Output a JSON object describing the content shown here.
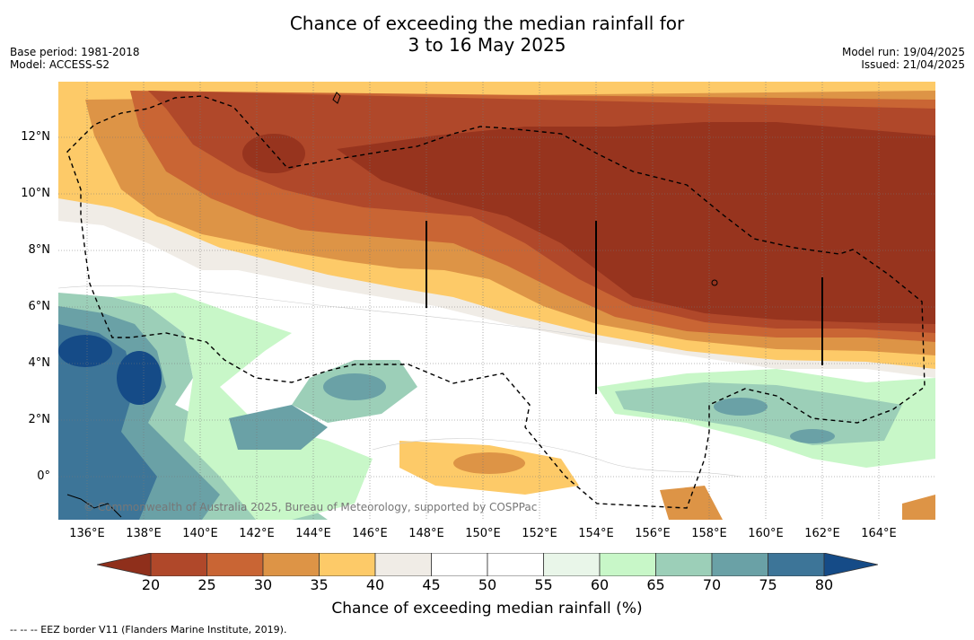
{
  "header": {
    "title_line1": "Chance of exceeding the median rainfall for",
    "title_line2": "3 to 16 May 2025",
    "base_period": "Base period: 1981-2018",
    "model": "Model: ACCESS-S2",
    "model_run": "Model run: 19/04/2025",
    "issued": "Issued: 21/04/2025"
  },
  "map": {
    "copyright": "© Commonwealth of Australia 2025, Bureau of Meteorology, supported by COSPPac",
    "lat_labels": [
      "12°N",
      "10°N",
      "8°N",
      "6°N",
      "4°N",
      "2°N",
      "0°"
    ],
    "lon_labels": [
      "136°E",
      "138°E",
      "140°E",
      "142°E",
      "144°E",
      "146°E",
      "148°E",
      "150°E",
      "152°E",
      "154°E",
      "156°E",
      "158°E",
      "160°E",
      "162°E",
      "164°E"
    ]
  },
  "colorbar": {
    "ticks": [
      "20",
      "25",
      "30",
      "35",
      "40",
      "45",
      "50",
      "55",
      "60",
      "65",
      "70",
      "75",
      "80"
    ],
    "colors": [
      "#97341e",
      "#b0482a",
      "#c96534",
      "#dd9446",
      "#fdca68",
      "#f0ece6",
      "#ffffff",
      "#ffffff",
      "#e9f6e9",
      "#c8f7c8",
      "#9ccfb8",
      "#6aa1a6",
      "#3d7598"
    ],
    "under_color": "#8f2f1b",
    "over_color": "#154b87",
    "label": "Chance of exceeding median rainfall (%)"
  },
  "footnote": "--  --  -- EEZ border V11 (Flanders Marine Institute, 2019)."
}
